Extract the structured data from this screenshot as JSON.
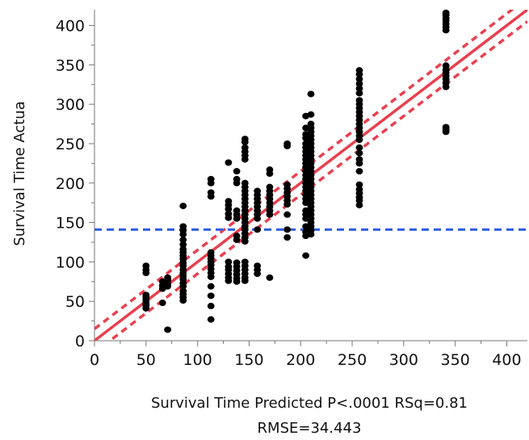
{
  "chart_data": {
    "type": "scatter",
    "title": "",
    "xlabel": "Survival Time Predicted P<.0001 RSq=0.81",
    "xlabel_line2": "RMSE=34.443",
    "ylabel": "Survival Time Actua",
    "xlim": [
      0,
      420
    ],
    "ylim": [
      0,
      420
    ],
    "xticks": [
      0,
      50,
      100,
      150,
      200,
      250,
      300,
      350,
      400
    ],
    "yticks": [
      0,
      50,
      100,
      150,
      200,
      250,
      300,
      350,
      400
    ],
    "grid": false,
    "colors": {
      "points": "#000000",
      "fit": "#e8404f",
      "mean": "#2f5fe0"
    },
    "mean_line": 141,
    "fit_line": {
      "type": "identity",
      "from": [
        0,
        0
      ],
      "to": [
        420,
        420
      ]
    },
    "confidence_band": {
      "lower_offset_low": 15,
      "lower_offset_high": -15,
      "upper_offset_low": -15,
      "upper_offset_high": 15
    },
    "series": [
      {
        "points": [
          [
            50,
            95
          ],
          [
            50,
            90
          ],
          [
            50,
            86
          ],
          [
            50,
            58
          ],
          [
            50,
            55
          ],
          [
            50,
            52
          ],
          [
            50,
            49
          ],
          [
            50,
            46
          ],
          [
            50,
            44
          ],
          [
            50,
            41
          ],
          [
            66,
            75
          ],
          [
            66,
            70
          ],
          [
            66,
            66
          ],
          [
            66,
            48
          ],
          [
            71,
            80
          ],
          [
            71,
            77
          ],
          [
            71,
            72
          ],
          [
            71,
            69
          ],
          [
            71,
            14
          ],
          [
            86,
            171
          ],
          [
            86,
            145
          ],
          [
            86,
            140
          ],
          [
            86,
            135
          ],
          [
            86,
            128
          ],
          [
            86,
            122
          ],
          [
            86,
            116
          ],
          [
            86,
            112
          ],
          [
            86,
            108
          ],
          [
            86,
            104
          ],
          [
            86,
            99
          ],
          [
            86,
            95
          ],
          [
            86,
            90
          ],
          [
            86,
            86
          ],
          [
            86,
            82
          ],
          [
            86,
            78
          ],
          [
            86,
            73
          ],
          [
            86,
            69
          ],
          [
            86,
            63
          ],
          [
            86,
            59
          ],
          [
            86,
            55
          ],
          [
            86,
            51
          ],
          [
            113,
            205
          ],
          [
            113,
            200
          ],
          [
            113,
            188
          ],
          [
            113,
            183
          ],
          [
            113,
            112
          ],
          [
            113,
            108
          ],
          [
            113,
            104
          ],
          [
            113,
            100
          ],
          [
            113,
            96
          ],
          [
            113,
            91
          ],
          [
            113,
            86
          ],
          [
            113,
            81
          ],
          [
            113,
            69
          ],
          [
            113,
            57
          ],
          [
            113,
            44
          ],
          [
            113,
            27
          ],
          [
            130,
            226
          ],
          [
            130,
            177
          ],
          [
            130,
            172
          ],
          [
            130,
            167
          ],
          [
            130,
            161
          ],
          [
            130,
            156
          ],
          [
            130,
            100
          ],
          [
            130,
            94
          ],
          [
            130,
            90
          ],
          [
            130,
            85
          ],
          [
            130,
            80
          ],
          [
            130,
            76
          ],
          [
            138,
            215
          ],
          [
            138,
            205
          ],
          [
            138,
            200
          ],
          [
            138,
            165
          ],
          [
            138,
            160
          ],
          [
            138,
            155
          ],
          [
            138,
            133
          ],
          [
            138,
            128
          ],
          [
            138,
            99
          ],
          [
            138,
            94
          ],
          [
            138,
            89
          ],
          [
            138,
            84
          ],
          [
            138,
            79
          ],
          [
            138,
            75
          ],
          [
            146,
            256
          ],
          [
            146,
            252
          ],
          [
            146,
            245
          ],
          [
            146,
            240
          ],
          [
            146,
            235
          ],
          [
            146,
            230
          ],
          [
            146,
            200
          ],
          [
            146,
            195
          ],
          [
            146,
            190
          ],
          [
            146,
            185
          ],
          [
            146,
            180
          ],
          [
            146,
            175
          ],
          [
            146,
            170
          ],
          [
            146,
            165
          ],
          [
            146,
            160
          ],
          [
            146,
            155
          ],
          [
            146,
            150
          ],
          [
            146,
            145
          ],
          [
            146,
            141
          ],
          [
            146,
            136
          ],
          [
            146,
            131
          ],
          [
            146,
            126
          ],
          [
            146,
            100
          ],
          [
            146,
            95
          ],
          [
            146,
            90
          ],
          [
            146,
            85
          ],
          [
            146,
            80
          ],
          [
            146,
            76
          ],
          [
            158,
            190
          ],
          [
            158,
            185
          ],
          [
            158,
            180
          ],
          [
            158,
            175
          ],
          [
            158,
            170
          ],
          [
            158,
            165
          ],
          [
            158,
            160
          ],
          [
            158,
            155
          ],
          [
            158,
            141
          ],
          [
            158,
            95
          ],
          [
            158,
            90
          ],
          [
            158,
            85
          ],
          [
            170,
            217
          ],
          [
            170,
            212
          ],
          [
            170,
            195
          ],
          [
            170,
            190
          ],
          [
            170,
            185
          ],
          [
            170,
            180
          ],
          [
            170,
            175
          ],
          [
            170,
            170
          ],
          [
            170,
            165
          ],
          [
            170,
            160
          ],
          [
            170,
            80
          ],
          [
            187,
            250
          ],
          [
            187,
            247
          ],
          [
            187,
            198
          ],
          [
            187,
            193
          ],
          [
            187,
            188
          ],
          [
            187,
            183
          ],
          [
            187,
            178
          ],
          [
            187,
            173
          ],
          [
            187,
            160
          ],
          [
            187,
            141
          ],
          [
            187,
            131
          ],
          [
            205,
            285
          ],
          [
            205,
            270
          ],
          [
            205,
            262
          ],
          [
            205,
            257
          ],
          [
            205,
            250
          ],
          [
            205,
            245
          ],
          [
            205,
            240
          ],
          [
            205,
            235
          ],
          [
            205,
            230
          ],
          [
            205,
            225
          ],
          [
            205,
            220
          ],
          [
            205,
            215
          ],
          [
            205,
            210
          ],
          [
            205,
            205
          ],
          [
            205,
            200
          ],
          [
            205,
            195
          ],
          [
            205,
            190
          ],
          [
            205,
            185
          ],
          [
            205,
            180
          ],
          [
            205,
            175
          ],
          [
            205,
            165
          ],
          [
            205,
            160
          ],
          [
            205,
            155
          ],
          [
            205,
            145
          ],
          [
            205,
            138
          ],
          [
            205,
            133
          ],
          [
            205,
            108
          ],
          [
            210,
            313
          ],
          [
            210,
            287
          ],
          [
            210,
            275
          ],
          [
            210,
            270
          ],
          [
            210,
            265
          ],
          [
            210,
            260
          ],
          [
            210,
            255
          ],
          [
            210,
            250
          ],
          [
            210,
            245
          ],
          [
            210,
            240
          ],
          [
            210,
            235
          ],
          [
            210,
            230
          ],
          [
            210,
            225
          ],
          [
            210,
            220
          ],
          [
            210,
            215
          ],
          [
            210,
            210
          ],
          [
            210,
            205
          ],
          [
            210,
            200
          ],
          [
            210,
            195
          ],
          [
            210,
            190
          ],
          [
            210,
            185
          ],
          [
            210,
            180
          ],
          [
            210,
            175
          ],
          [
            210,
            170
          ],
          [
            210,
            165
          ],
          [
            210,
            160
          ],
          [
            210,
            155
          ],
          [
            210,
            150
          ],
          [
            210,
            145
          ],
          [
            210,
            140
          ],
          [
            210,
            135
          ],
          [
            257,
            343
          ],
          [
            257,
            338
          ],
          [
            257,
            332
          ],
          [
            257,
            326
          ],
          [
            257,
            320
          ],
          [
            257,
            314
          ],
          [
            257,
            305
          ],
          [
            257,
            300
          ],
          [
            257,
            295
          ],
          [
            257,
            290
          ],
          [
            257,
            285
          ],
          [
            257,
            280
          ],
          [
            257,
            275
          ],
          [
            257,
            270
          ],
          [
            257,
            265
          ],
          [
            257,
            260
          ],
          [
            257,
            255
          ],
          [
            257,
            245
          ],
          [
            257,
            238
          ],
          [
            257,
            230
          ],
          [
            257,
            225
          ],
          [
            257,
            215
          ],
          [
            257,
            198
          ],
          [
            257,
            192
          ],
          [
            257,
            187
          ],
          [
            257,
            182
          ],
          [
            257,
            178
          ],
          [
            257,
            172
          ],
          [
            341,
            416
          ],
          [
            341,
            413
          ],
          [
            341,
            409
          ],
          [
            341,
            406
          ],
          [
            341,
            402
          ],
          [
            341,
            398
          ],
          [
            341,
            394
          ],
          [
            341,
            349
          ],
          [
            341,
            344
          ],
          [
            341,
            340
          ],
          [
            341,
            336
          ],
          [
            341,
            332
          ],
          [
            341,
            327
          ],
          [
            341,
            322
          ],
          [
            341,
            271
          ],
          [
            341,
            268
          ],
          [
            341,
            265
          ]
        ]
      }
    ]
  }
}
